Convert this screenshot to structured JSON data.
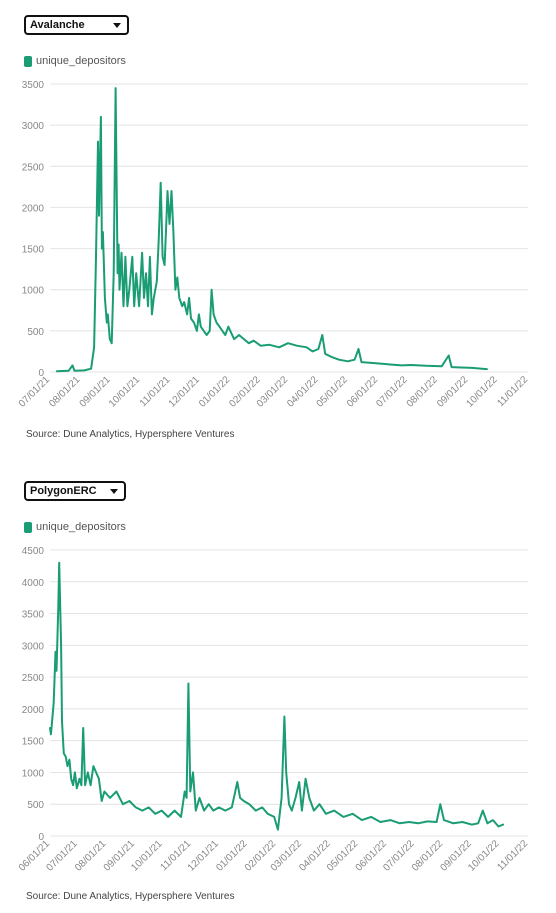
{
  "colors": {
    "series": "#1a9c74",
    "grid": "#e4e4e4",
    "axis_text": "#888888"
  },
  "charts": [
    {
      "dropdown": {
        "selected": "Avalanche",
        "icon": "chevron-down-icon"
      },
      "legend": {
        "label": "unique_depositors"
      },
      "source": "Source: Dune Analytics, Hypersphere Ventures",
      "chart_data": {
        "type": "line",
        "series": [
          {
            "name": "unique_depositors"
          }
        ],
        "ylim": [
          0,
          3500
        ],
        "yticks": [
          0,
          500,
          1000,
          1500,
          2000,
          2500,
          3000,
          3500
        ],
        "xlim": [
          "2021-07-01",
          "2022-11-01"
        ],
        "xticks": [
          "07/01/21",
          "08/01/21",
          "09/01/21",
          "10/01/21",
          "11/01/21",
          "12/01/21",
          "01/01/22",
          "02/01/22",
          "03/01/22",
          "04/01/22",
          "05/01/22",
          "06/01/22",
          "07/01/22",
          "08/01/22",
          "09/01/22",
          "10/01/22",
          "11/01/22"
        ],
        "grid": true,
        "legend_position": "top-left",
        "points": [
          [
            "2021-07-08",
            10
          ],
          [
            "2021-07-20",
            15
          ],
          [
            "2021-07-24",
            80
          ],
          [
            "2021-07-26",
            15
          ],
          [
            "2021-08-05",
            20
          ],
          [
            "2021-08-12",
            40
          ],
          [
            "2021-08-15",
            300
          ],
          [
            "2021-08-17",
            1400
          ],
          [
            "2021-08-19",
            2800
          ],
          [
            "2021-08-20",
            1900
          ],
          [
            "2021-08-22",
            3100
          ],
          [
            "2021-08-23",
            1500
          ],
          [
            "2021-08-24",
            1700
          ],
          [
            "2021-08-26",
            900
          ],
          [
            "2021-08-28",
            600
          ],
          [
            "2021-08-29",
            700
          ],
          [
            "2021-08-31",
            400
          ],
          [
            "2021-09-02",
            350
          ],
          [
            "2021-09-04",
            1200
          ],
          [
            "2021-09-06",
            3450
          ],
          [
            "2021-09-08",
            1200
          ],
          [
            "2021-09-09",
            1550
          ],
          [
            "2021-09-10",
            1000
          ],
          [
            "2021-09-12",
            1450
          ],
          [
            "2021-09-14",
            800
          ],
          [
            "2021-09-16",
            1400
          ],
          [
            "2021-09-18",
            800
          ],
          [
            "2021-09-20",
            1000
          ],
          [
            "2021-09-23",
            1400
          ],
          [
            "2021-09-25",
            800
          ],
          [
            "2021-09-27",
            1200
          ],
          [
            "2021-09-30",
            800
          ],
          [
            "2021-10-03",
            1450
          ],
          [
            "2021-10-05",
            900
          ],
          [
            "2021-10-07",
            1200
          ],
          [
            "2021-10-09",
            800
          ],
          [
            "2021-10-11",
            1400
          ],
          [
            "2021-10-13",
            700
          ],
          [
            "2021-10-15",
            900
          ],
          [
            "2021-10-18",
            1100
          ],
          [
            "2021-10-20",
            1600
          ],
          [
            "2021-10-22",
            2300
          ],
          [
            "2021-10-24",
            1400
          ],
          [
            "2021-10-26",
            1300
          ],
          [
            "2021-10-28",
            1900
          ],
          [
            "2021-10-29",
            2200
          ],
          [
            "2021-10-31",
            1800
          ],
          [
            "2021-11-02",
            2200
          ],
          [
            "2021-11-04",
            1700
          ],
          [
            "2021-11-06",
            1000
          ],
          [
            "2021-11-08",
            1150
          ],
          [
            "2021-11-10",
            900
          ],
          [
            "2021-11-13",
            800
          ],
          [
            "2021-11-15",
            850
          ],
          [
            "2021-11-18",
            700
          ],
          [
            "2021-11-20",
            900
          ],
          [
            "2021-11-22",
            650
          ],
          [
            "2021-11-25",
            600
          ],
          [
            "2021-11-28",
            500
          ],
          [
            "2021-11-30",
            700
          ],
          [
            "2021-12-02",
            550
          ],
          [
            "2021-12-05",
            500
          ],
          [
            "2021-12-08",
            450
          ],
          [
            "2021-12-11",
            500
          ],
          [
            "2021-12-13",
            1000
          ],
          [
            "2021-12-15",
            700
          ],
          [
            "2021-12-18",
            600
          ],
          [
            "2021-12-21",
            550
          ],
          [
            "2021-12-24",
            500
          ],
          [
            "2021-12-27",
            450
          ],
          [
            "2021-12-30",
            550
          ],
          [
            "2022-01-05",
            400
          ],
          [
            "2022-01-10",
            450
          ],
          [
            "2022-01-15",
            400
          ],
          [
            "2022-01-20",
            350
          ],
          [
            "2022-01-25",
            380
          ],
          [
            "2022-02-01",
            320
          ],
          [
            "2022-02-10",
            330
          ],
          [
            "2022-02-20",
            300
          ],
          [
            "2022-03-01",
            350
          ],
          [
            "2022-03-10",
            320
          ],
          [
            "2022-03-20",
            300
          ],
          [
            "2022-03-26",
            250
          ],
          [
            "2022-04-01",
            280
          ],
          [
            "2022-04-05",
            450
          ],
          [
            "2022-04-08",
            220
          ],
          [
            "2022-04-15",
            180
          ],
          [
            "2022-04-22",
            150
          ],
          [
            "2022-05-01",
            130
          ],
          [
            "2022-05-08",
            150
          ],
          [
            "2022-05-12",
            280
          ],
          [
            "2022-05-15",
            120
          ],
          [
            "2022-05-25",
            110
          ],
          [
            "2022-06-05",
            100
          ],
          [
            "2022-06-15",
            90
          ],
          [
            "2022-06-25",
            80
          ],
          [
            "2022-07-05",
            85
          ],
          [
            "2022-07-20",
            75
          ],
          [
            "2022-08-05",
            70
          ],
          [
            "2022-08-12",
            200
          ],
          [
            "2022-08-15",
            60
          ],
          [
            "2022-08-25",
            55
          ],
          [
            "2022-09-05",
            50
          ],
          [
            "2022-09-15",
            40
          ],
          [
            "2022-09-20",
            35
          ]
        ]
      }
    },
    {
      "dropdown": {
        "selected": "PolygonERC",
        "icon": "chevron-down-icon"
      },
      "legend": {
        "label": "unique_depositors"
      },
      "source": "Source: Dune Analytics, Hypersphere Ventures",
      "chart_data": {
        "type": "line",
        "series": [
          {
            "name": "unique_depositors"
          }
        ],
        "ylim": [
          0,
          4500
        ],
        "yticks": [
          0,
          500,
          1000,
          1500,
          2000,
          2500,
          3000,
          3500,
          4000,
          4500
        ],
        "xlim": [
          "2021-06-01",
          "2022-11-01"
        ],
        "xticks": [
          "06/01/21",
          "07/01/21",
          "08/01/21",
          "09/01/21",
          "10/01/21",
          "11/01/21",
          "12/01/21",
          "01/01/22",
          "02/01/22",
          "03/01/22",
          "04/01/22",
          "05/01/22",
          "06/01/22",
          "07/01/22",
          "08/01/22",
          "09/01/22",
          "10/01/22",
          "11/01/22"
        ],
        "grid": true,
        "legend_position": "top-left",
        "points": [
          [
            "2021-06-01",
            1700
          ],
          [
            "2021-06-02",
            1600
          ],
          [
            "2021-06-03",
            1750
          ],
          [
            "2021-06-05",
            2100
          ],
          [
            "2021-06-07",
            2900
          ],
          [
            "2021-06-08",
            2600
          ],
          [
            "2021-06-10",
            3600
          ],
          [
            "2021-06-11",
            4300
          ],
          [
            "2021-06-13",
            3000
          ],
          [
            "2021-06-14",
            1800
          ],
          [
            "2021-06-16",
            1300
          ],
          [
            "2021-06-18",
            1250
          ],
          [
            "2021-06-20",
            1100
          ],
          [
            "2021-06-22",
            1200
          ],
          [
            "2021-06-24",
            900
          ],
          [
            "2021-06-26",
            800
          ],
          [
            "2021-06-28",
            1000
          ],
          [
            "2021-06-30",
            750
          ],
          [
            "2021-07-03",
            900
          ],
          [
            "2021-07-05",
            800
          ],
          [
            "2021-07-07",
            1700
          ],
          [
            "2021-07-09",
            800
          ],
          [
            "2021-07-12",
            1000
          ],
          [
            "2021-07-15",
            800
          ],
          [
            "2021-07-18",
            1100
          ],
          [
            "2021-07-21",
            1000
          ],
          [
            "2021-07-24",
            900
          ],
          [
            "2021-07-27",
            550
          ],
          [
            "2021-07-30",
            700
          ],
          [
            "2021-08-05",
            600
          ],
          [
            "2021-08-12",
            700
          ],
          [
            "2021-08-19",
            500
          ],
          [
            "2021-08-26",
            550
          ],
          [
            "2021-09-02",
            450
          ],
          [
            "2021-09-09",
            400
          ],
          [
            "2021-09-16",
            450
          ],
          [
            "2021-09-23",
            350
          ],
          [
            "2021-09-30",
            400
          ],
          [
            "2021-10-07",
            300
          ],
          [
            "2021-10-14",
            400
          ],
          [
            "2021-10-21",
            300
          ],
          [
            "2021-10-25",
            700
          ],
          [
            "2021-10-27",
            600
          ],
          [
            "2021-10-29",
            2400
          ],
          [
            "2021-10-31",
            700
          ],
          [
            "2021-11-03",
            1000
          ],
          [
            "2021-11-06",
            400
          ],
          [
            "2021-11-10",
            600
          ],
          [
            "2021-11-15",
            400
          ],
          [
            "2021-11-20",
            500
          ],
          [
            "2021-11-25",
            400
          ],
          [
            "2021-12-01",
            450
          ],
          [
            "2021-12-08",
            400
          ],
          [
            "2021-12-15",
            450
          ],
          [
            "2021-12-21",
            850
          ],
          [
            "2021-12-24",
            600
          ],
          [
            "2021-12-28",
            550
          ],
          [
            "2022-01-03",
            500
          ],
          [
            "2022-01-10",
            400
          ],
          [
            "2022-01-17",
            450
          ],
          [
            "2022-01-23",
            350
          ],
          [
            "2022-01-30",
            300
          ],
          [
            "2022-02-03",
            100
          ],
          [
            "2022-02-07",
            600
          ],
          [
            "2022-02-10",
            1880
          ],
          [
            "2022-02-12",
            1000
          ],
          [
            "2022-02-15",
            500
          ],
          [
            "2022-02-18",
            400
          ],
          [
            "2022-02-22",
            600
          ],
          [
            "2022-02-26",
            850
          ],
          [
            "2022-03-01",
            400
          ],
          [
            "2022-03-05",
            900
          ],
          [
            "2022-03-09",
            600
          ],
          [
            "2022-03-14",
            400
          ],
          [
            "2022-03-20",
            500
          ],
          [
            "2022-03-27",
            350
          ],
          [
            "2022-04-05",
            400
          ],
          [
            "2022-04-15",
            300
          ],
          [
            "2022-04-25",
            350
          ],
          [
            "2022-05-05",
            250
          ],
          [
            "2022-05-15",
            300
          ],
          [
            "2022-05-25",
            220
          ],
          [
            "2022-06-05",
            250
          ],
          [
            "2022-06-15",
            200
          ],
          [
            "2022-06-25",
            220
          ],
          [
            "2022-07-05",
            200
          ],
          [
            "2022-07-15",
            230
          ],
          [
            "2022-07-25",
            220
          ],
          [
            "2022-07-29",
            500
          ],
          [
            "2022-08-02",
            250
          ],
          [
            "2022-08-12",
            200
          ],
          [
            "2022-08-22",
            220
          ],
          [
            "2022-09-01",
            180
          ],
          [
            "2022-09-08",
            200
          ],
          [
            "2022-09-13",
            400
          ],
          [
            "2022-09-18",
            200
          ],
          [
            "2022-09-24",
            250
          ],
          [
            "2022-09-30",
            150
          ],
          [
            "2022-10-05",
            180
          ]
        ]
      }
    }
  ]
}
